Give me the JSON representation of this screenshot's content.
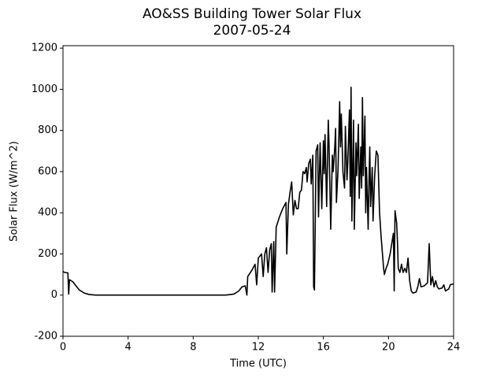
{
  "chart_data": {
    "type": "line",
    "title": "AO&SS Building Tower Solar Flux",
    "subtitle": "2007-05-24",
    "x_label": "Time (UTC)",
    "y_label": "Solar Flux (W/m^2)",
    "xlim": [
      0,
      24
    ],
    "xticks": [
      0,
      4,
      8,
      12,
      16,
      20,
      24
    ],
    "ylim": [
      -200,
      1212
    ],
    "yticks": [
      -200,
      0,
      200,
      400,
      600,
      800,
      1000,
      1200
    ],
    "x": [
      0,
      0.1,
      0.3,
      0.35,
      0.4,
      0.6,
      0.8,
      1.0,
      1.3,
      1.6,
      2,
      4,
      6,
      8,
      10,
      10.5,
      10.8,
      11,
      11.2,
      11.3,
      11.35,
      11.6,
      11.8,
      11.9,
      12.0,
      12.2,
      12.3,
      12.4,
      12.5,
      12.6,
      12.7,
      12.8,
      12.85,
      12.95,
      13.0,
      13.1,
      13.3,
      13.5,
      13.7,
      13.75,
      13.85,
      13.95,
      14.05,
      14.15,
      14.25,
      14.35,
      14.45,
      14.55,
      14.65,
      14.75,
      14.85,
      14.95,
      15.0,
      15.1,
      15.2,
      15.25,
      15.35,
      15.4,
      15.45,
      15.55,
      15.65,
      15.7,
      15.8,
      15.9,
      16.0,
      16.05,
      16.1,
      16.2,
      16.3,
      16.35,
      16.45,
      16.55,
      16.6,
      16.7,
      16.75,
      16.8,
      16.9,
      17.0,
      17.05,
      17.1,
      17.2,
      17.3,
      17.35,
      17.45,
      17.5,
      17.6,
      17.65,
      17.7,
      17.75,
      17.85,
      17.9,
      18.0,
      18.05,
      18.15,
      18.2,
      18.3,
      18.35,
      18.4,
      18.45,
      18.5,
      18.55,
      18.6,
      18.65,
      18.75,
      18.8,
      18.85,
      18.9,
      19.0,
      19.05,
      19.15,
      19.25,
      19.35,
      19.45,
      19.55,
      19.6,
      19.7,
      19.75,
      19.85,
      19.95,
      20.1,
      20.2,
      20.3,
      20.35,
      20.4,
      20.5,
      20.55,
      20.6,
      20.7,
      20.8,
      20.9,
      21.0,
      21.1,
      21.2,
      21.3,
      21.4,
      21.5,
      21.7,
      21.8,
      21.9,
      22.0,
      22.2,
      22.4,
      22.5,
      22.6,
      22.7,
      22.8,
      22.9,
      23.0,
      23.1,
      23.3,
      23.4,
      23.5,
      23.7,
      23.8,
      24
    ],
    "series": [
      {
        "color": "#000000",
        "values": [
          115,
          110,
          108,
          5,
          75,
          65,
          45,
          25,
          10,
          3,
          0,
          0,
          0,
          0,
          0,
          5,
          20,
          40,
          45,
          0,
          90,
          120,
          150,
          50,
          180,
          200,
          90,
          200,
          230,
          110,
          220,
          250,
          15,
          260,
          15,
          330,
          380,
          420,
          450,
          200,
          440,
          500,
          550,
          390,
          460,
          420,
          420,
          500,
          510,
          600,
          590,
          620,
          550,
          640,
          660,
          540,
          680,
          40,
          25,
          700,
          730,
          380,
          740,
          420,
          750,
          590,
          780,
          430,
          850,
          720,
          320,
          680,
          600,
          720,
          810,
          450,
          610,
          940,
          720,
          880,
          600,
          520,
          820,
          560,
          650,
          900,
          480,
          1010,
          360,
          850,
          320,
          740,
          580,
          830,
          470,
          720,
          520,
          960,
          580,
          720,
          870,
          400,
          620,
          320,
          550,
          720,
          430,
          620,
          360,
          580,
          700,
          680,
          400,
          280,
          230,
          130,
          100,
          130,
          150,
          200,
          250,
          300,
          20,
          410,
          350,
          260,
          130,
          110,
          150,
          110,
          130,
          110,
          180,
          70,
          20,
          10,
          15,
          40,
          80,
          40,
          45,
          60,
          250,
          50,
          90,
          40,
          70,
          40,
          30,
          35,
          50,
          20,
          30,
          50,
          55
        ]
      }
    ]
  }
}
